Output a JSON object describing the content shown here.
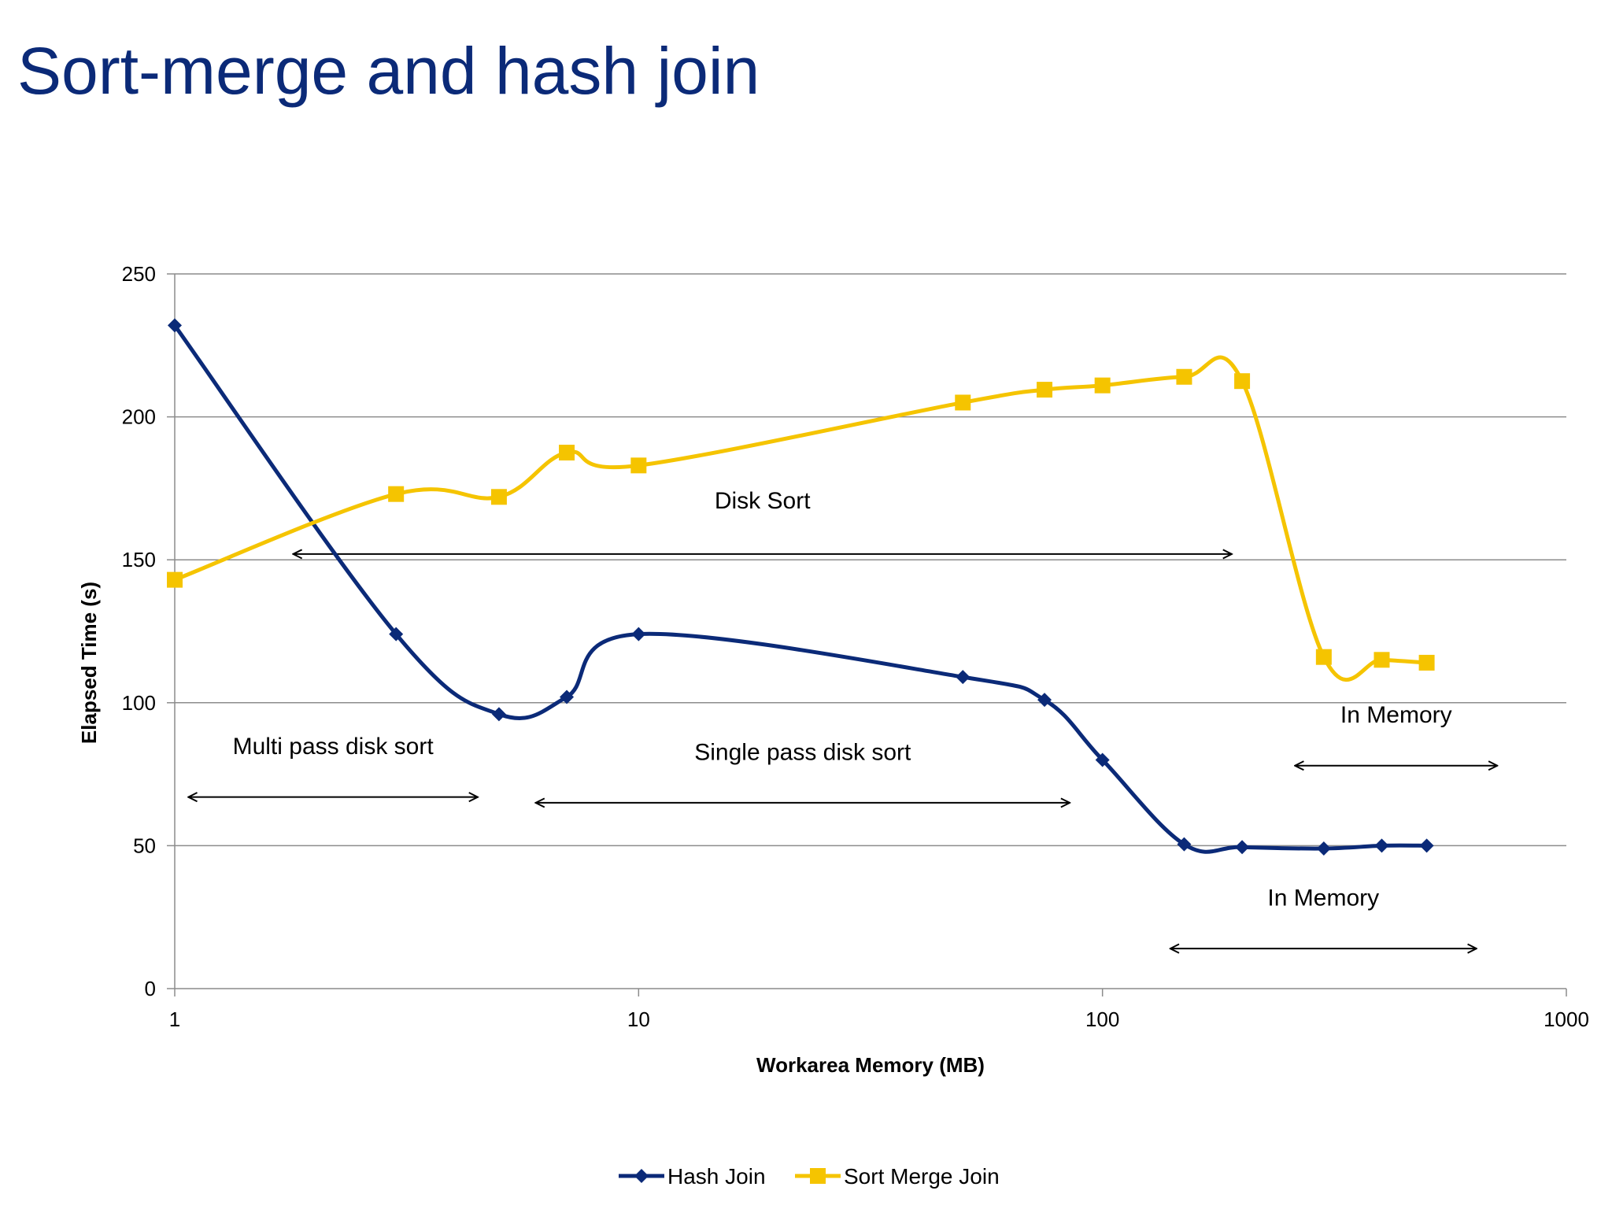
{
  "title": "Sort-merge and hash join",
  "chart_data": {
    "type": "line",
    "xscale": "log",
    "xlabel": "Workarea Memory (MB)",
    "ylabel": "Elapsed Time (s)",
    "xlim": [
      1,
      1000
    ],
    "ylim": [
      0,
      250
    ],
    "xticks": [
      1,
      10,
      100,
      1000
    ],
    "yticks": [
      0,
      50,
      100,
      150,
      200,
      250
    ],
    "grid": "horizontal",
    "legend": "bottom",
    "series": [
      {
        "name": "Hash Join",
        "color": "#0b2a78",
        "marker": "diamond",
        "x": [
          1,
          3,
          5,
          7,
          10,
          50,
          75,
          100,
          150,
          200,
          300,
          400,
          500
        ],
        "y": [
          232,
          124,
          96,
          102,
          124,
          109,
          101,
          80,
          50.5,
          49.5,
          49,
          50,
          50
        ]
      },
      {
        "name": "Sort Merge Join",
        "color": "#f5c400",
        "marker": "square",
        "x": [
          1,
          3,
          5,
          7,
          10,
          50,
          75,
          100,
          150,
          200,
          300,
          400,
          500
        ],
        "y": [
          143,
          173,
          172,
          187.5,
          183,
          205,
          209.5,
          211,
          214,
          212.5,
          116,
          115,
          114
        ]
      }
    ],
    "annotations": [
      {
        "text": "Disk Sort",
        "x_from": 1.8,
        "x_to": 190,
        "arrow_y": 152,
        "label_y": 168
      },
      {
        "text": "Multi pass disk sort",
        "x_from": 1.07,
        "x_to": 4.5,
        "arrow_y": 67,
        "label_y": 82
      },
      {
        "text": "Single pass disk sort",
        "x_from": 6.0,
        "x_to": 85,
        "arrow_y": 65,
        "label_y": 80
      },
      {
        "text": "In Memory",
        "x_from": 260,
        "x_to": 710,
        "arrow_y": 78,
        "label_y": 93
      },
      {
        "text": "In Memory",
        "x_from": 140,
        "x_to": 640,
        "arrow_y": 14,
        "label_y": 29
      }
    ]
  }
}
